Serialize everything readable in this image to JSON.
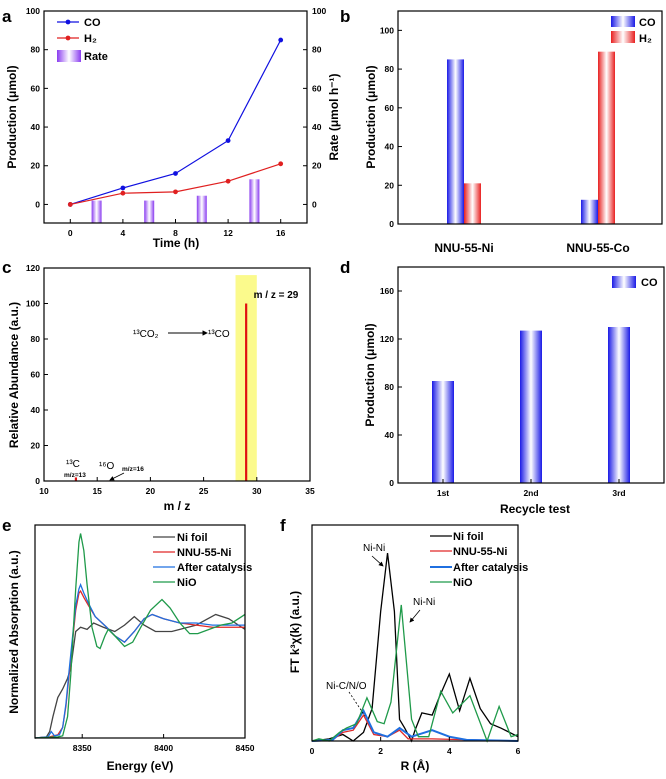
{
  "chart_data": [
    {
      "panel": "a",
      "type": "line",
      "xlabel": "Time (h)",
      "ylabel": "Production (μmol)",
      "y2label": "Rate (μmol h⁻¹)",
      "xlim": [
        -2,
        18
      ],
      "ylim": [
        -9.6,
        100
      ],
      "y2lim": [
        -9.6,
        100
      ],
      "xticks": [
        0,
        4,
        8,
        12,
        16
      ],
      "yticks": [
        0,
        20,
        40,
        60,
        80,
        100
      ],
      "series": [
        {
          "name": "CO",
          "color": "#1010e0",
          "x": [
            0,
            4,
            8,
            12,
            16
          ],
          "y": [
            0,
            8.5,
            16,
            33,
            85
          ]
        },
        {
          "name": "H₂",
          "color": "#e02020",
          "x": [
            0,
            4,
            8,
            12,
            16
          ],
          "y": [
            0,
            5.8,
            6.5,
            12,
            21
          ]
        }
      ],
      "bars": {
        "name": "Rate",
        "color": "#8a3cf0",
        "x": [
          2,
          6,
          10,
          14
        ],
        "y": [
          2,
          2,
          4.5,
          13
        ]
      }
    },
    {
      "panel": "b",
      "type": "bar",
      "xlabel": "",
      "ylabel": "Production (μmol)",
      "categories": [
        "NNU-55-Ni",
        "NNU-55-Co"
      ],
      "ylim": [
        0,
        110
      ],
      "yticks": [
        0,
        20,
        40,
        60,
        80,
        100
      ],
      "series": [
        {
          "name": "CO",
          "color": "#1a1ae6",
          "values": [
            85,
            12.5
          ]
        },
        {
          "name": "H₂",
          "color": "#e82020",
          "values": [
            21,
            89
          ]
        }
      ]
    },
    {
      "panel": "c",
      "type": "bar",
      "xlabel": "m / z",
      "ylabel": "Relative Abundance (a.u.)",
      "xlim": [
        10,
        35
      ],
      "ylim": [
        0,
        120
      ],
      "xticks": [
        10,
        15,
        20,
        25,
        30,
        35
      ],
      "yticks": [
        0,
        20,
        40,
        60,
        80,
        100,
        120
      ],
      "peaks": {
        "x": [
          13,
          16,
          29
        ],
        "y": [
          2,
          0.3,
          100
        ],
        "color": "#e01010"
      },
      "highlight": {
        "x": [
          28,
          30
        ],
        "top": 116,
        "color": "#fbfa8c"
      },
      "annotations": {
        "peak29": "m / z = 29",
        "reactant": "¹³CO₂",
        "product": "¹³CO",
        "c13": "¹³C",
        "c13_mz": "m/z=13",
        "o16": "¹⁶O",
        "o16_mz": "m/z=16"
      }
    },
    {
      "panel": "d",
      "type": "bar",
      "xlabel": "Recycle test",
      "ylabel": "Production (μmol)",
      "categories": [
        "1st",
        "2nd",
        "3rd"
      ],
      "ylim": [
        0,
        180
      ],
      "yticks": [
        0,
        40,
        80,
        120,
        160
      ],
      "series": [
        {
          "name": "CO",
          "color": "#1a1ae6",
          "values": [
            85,
            127,
            130
          ]
        }
      ]
    },
    {
      "panel": "e",
      "type": "line",
      "xlabel": "Energy (eV)",
      "ylabel": "Normalized Absorption (a.u.)",
      "xlim": [
        8321,
        8450
      ],
      "ylim": [
        0,
        1
      ],
      "xticks": [
        8350,
        8400,
        8450
      ],
      "series": [
        {
          "name": "Ni foil",
          "color": "#444444",
          "x": [
            8321,
            8328,
            8330,
            8332,
            8335,
            8338,
            8341,
            8343,
            8346,
            8349,
            8353,
            8357,
            8363,
            8370,
            8376,
            8382,
            8388,
            8395,
            8405,
            8420,
            8432,
            8440,
            8450
          ],
          "y": [
            0,
            0.005,
            0.03,
            0.1,
            0.19,
            0.23,
            0.28,
            0.33,
            0.5,
            0.52,
            0.51,
            0.54,
            0.52,
            0.5,
            0.53,
            0.57,
            0.53,
            0.5,
            0.5,
            0.53,
            0.58,
            0.56,
            0.51
          ]
        },
        {
          "name": "NNU-55-Ni",
          "color": "#e02828",
          "x": [
            8321,
            8330,
            8335,
            8338,
            8340,
            8342,
            8344,
            8346,
            8348,
            8349,
            8351,
            8354,
            8358,
            8365,
            8370,
            8376,
            8382,
            8388,
            8393,
            8400,
            8410,
            8420,
            8430,
            8440,
            8450
          ],
          "y": [
            0,
            0.005,
            0.015,
            0.05,
            0.15,
            0.3,
            0.45,
            0.6,
            0.68,
            0.69,
            0.66,
            0.62,
            0.57,
            0.52,
            0.48,
            0.45,
            0.5,
            0.56,
            0.58,
            0.56,
            0.54,
            0.53,
            0.52,
            0.52,
            0.52
          ]
        },
        {
          "name": "After catalysis",
          "color": "#1f6fe0",
          "x": [
            8321,
            8329,
            8331,
            8333,
            8336,
            8338,
            8340,
            8342,
            8344,
            8346,
            8348,
            8349,
            8351,
            8354,
            8358,
            8365,
            8370,
            8376,
            8382,
            8388,
            8393,
            8400,
            8410,
            8420,
            8430,
            8440,
            8450
          ],
          "y": [
            0,
            0.005,
            0.03,
            0.01,
            0.015,
            0.05,
            0.16,
            0.32,
            0.47,
            0.62,
            0.7,
            0.72,
            0.68,
            0.63,
            0.57,
            0.52,
            0.48,
            0.45,
            0.5,
            0.56,
            0.58,
            0.56,
            0.54,
            0.54,
            0.53,
            0.53,
            0.53
          ]
        },
        {
          "name": "NiO",
          "color": "#1f9a4a",
          "x": [
            8321,
            8335,
            8338,
            8341,
            8343,
            8346,
            8348,
            8349,
            8351,
            8353,
            8356,
            8359,
            8361,
            8364,
            8366,
            8370,
            8376,
            8381,
            8386,
            8392,
            8399,
            8404,
            8410,
            8416,
            8421,
            8428,
            8435,
            8442,
            8450
          ],
          "y": [
            0,
            0.005,
            0.01,
            0.1,
            0.3,
            0.7,
            0.92,
            0.96,
            0.88,
            0.72,
            0.52,
            0.43,
            0.42,
            0.48,
            0.51,
            0.48,
            0.43,
            0.45,
            0.52,
            0.6,
            0.65,
            0.61,
            0.54,
            0.49,
            0.49,
            0.51,
            0.53,
            0.54,
            0.58
          ]
        }
      ]
    },
    {
      "panel": "f",
      "type": "line",
      "xlabel": "R (Å)",
      "ylabel": "FT k³χ(k) (a.u.)",
      "xlim": [
        0,
        6
      ],
      "ylim": [
        0,
        1
      ],
      "xticks": [
        0,
        2,
        4,
        6
      ],
      "series": [
        {
          "name": "Ni foil",
          "color": "#000000",
          "x": [
            0,
            0.5,
            0.9,
            1.2,
            1.5,
            1.75,
            2.0,
            2.2,
            2.4,
            2.55,
            2.7,
            2.9,
            3.0,
            3.2,
            3.5,
            3.7,
            4.0,
            4.3,
            4.6,
            4.9,
            5.2,
            5.5,
            6.0
          ],
          "y": [
            0,
            0.01,
            0.03,
            0.0,
            0.04,
            0.15,
            0.6,
            0.87,
            0.6,
            0.1,
            0.06,
            0.0,
            0.05,
            0.13,
            0.12,
            0.2,
            0.31,
            0.14,
            0.29,
            0.15,
            0.08,
            0.06,
            0.02
          ]
        },
        {
          "name": "NNU-55-Ni",
          "color": "#e02828",
          "x": [
            0,
            0.6,
            0.9,
            1.2,
            1.5,
            1.8,
            2.2,
            2.55,
            2.8,
            3.5,
            6.0
          ],
          "y": [
            0,
            0.005,
            0.04,
            0.05,
            0.12,
            0.03,
            0.02,
            0.05,
            0.01,
            0.01,
            0.0
          ]
        },
        {
          "name": "After catalysis",
          "color": "#1f6fe0",
          "x": [
            0,
            0.6,
            0.9,
            1.2,
            1.5,
            1.8,
            2.2,
            2.55,
            2.9,
            3.5,
            4.0,
            4.5,
            6.0
          ],
          "y": [
            0,
            0.005,
            0.05,
            0.06,
            0.14,
            0.04,
            0.02,
            0.06,
            0.02,
            0.05,
            0.02,
            0.005,
            0.0
          ]
        },
        {
          "name": "NiO",
          "color": "#1f9a4a",
          "x": [
            0,
            0.2,
            0.5,
            0.8,
            1.0,
            1.3,
            1.6,
            1.9,
            2.1,
            2.3,
            2.6,
            2.9,
            3.1,
            3.4,
            3.75,
            4.1,
            4.6,
            5.1,
            5.45,
            5.8,
            6.0
          ],
          "y": [
            0,
            0.01,
            0.0,
            0.04,
            0.06,
            0.08,
            0.2,
            0.09,
            0.08,
            0.18,
            0.63,
            0.1,
            0.02,
            0.02,
            0.23,
            0.13,
            0.21,
            0.0,
            0.16,
            0.02,
            0.03
          ]
        }
      ],
      "annotations": {
        "nini1": "Ni-Ni",
        "nini2": "Ni-Ni",
        "nicno": "Ni-C/N/O"
      }
    }
  ]
}
